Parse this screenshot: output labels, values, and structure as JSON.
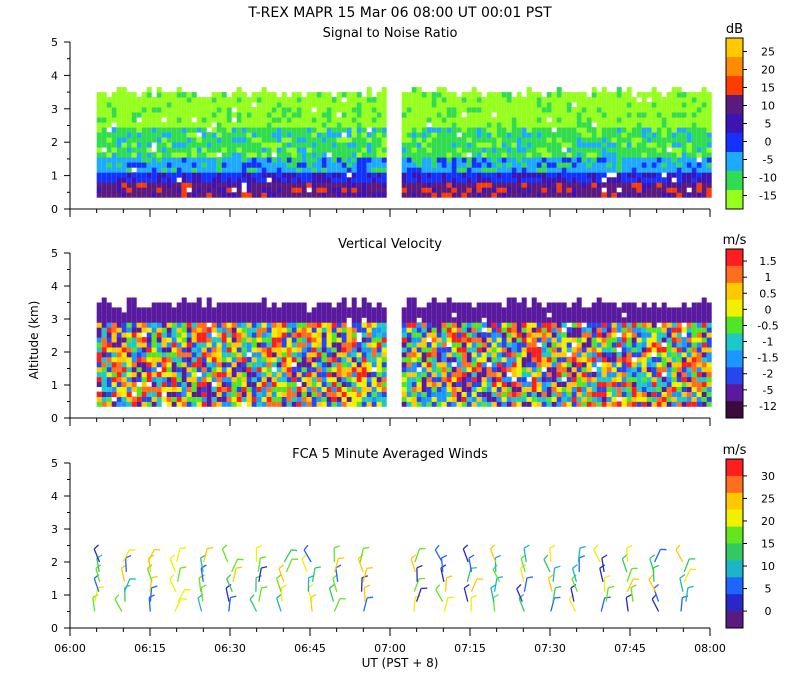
{
  "header": {
    "title": "T-REX   MAPR 15 Mar 06   08:00 UT   00:01   PST"
  },
  "x_axis": {
    "label": "UT  (PST + 8)",
    "ticks": [
      "06:00",
      "06:15",
      "06:30",
      "06:45",
      "07:00",
      "07:15",
      "07:30",
      "07:45",
      "08:00"
    ]
  },
  "y_axis": {
    "label": "Altitude (km)"
  },
  "chart_data": [
    {
      "type": "heatmap",
      "title": "Signal to Noise Ratio",
      "xlabel": "UT  (PST + 8)",
      "ylabel": "Altitude (km)",
      "xlim": [
        "06:00",
        "08:00"
      ],
      "ylim": [
        0,
        5
      ],
      "yticks": [
        "0",
        "1",
        "2",
        "3",
        "4",
        "5"
      ],
      "data_gap": [
        "06:59",
        "07:02"
      ],
      "colorbar": {
        "unit": "dB",
        "labels": [
          "25",
          "20",
          "15",
          "10",
          "5",
          "0",
          "-5",
          "-10",
          "-15"
        ],
        "colors": [
          "#ffc800",
          "#ff8c00",
          "#ff3c00",
          "#5a1a80",
          "#3c14b4",
          "#1432ff",
          "#1eaaff",
          "#32dc50",
          "#96ff1e"
        ]
      }
    },
    {
      "type": "heatmap",
      "title": "Vertical Velocity",
      "xlabel": "UT  (PST + 8)",
      "ylabel": "Altitude (km)",
      "xlim": [
        "06:00",
        "08:00"
      ],
      "ylim": [
        0,
        5
      ],
      "yticks": [
        "0",
        "1",
        "2",
        "3",
        "4",
        "5"
      ],
      "data_gap": [
        "06:59",
        "07:02"
      ],
      "colorbar": {
        "unit": "m/s",
        "labels": [
          "1.5",
          "1",
          "0.5",
          "0",
          "-0.5",
          "-1",
          "-1.5",
          "-2",
          "-5",
          "-12"
        ],
        "colors": [
          "#ff1e1e",
          "#ff6e1e",
          "#ffc800",
          "#f0f000",
          "#50e628",
          "#1ec8c8",
          "#1e96ff",
          "#2846f0",
          "#5a1aa0",
          "#3c0a3c"
        ]
      }
    },
    {
      "type": "wind-barbs",
      "title": "FCA 5 Minute Averaged Winds",
      "xlabel": "UT  (PST + 8)",
      "ylabel": "Altitude (km)",
      "xlim": [
        "06:00",
        "08:00"
      ],
      "ylim": [
        0,
        5
      ],
      "yticks": [
        "0",
        "1",
        "2",
        "3",
        "4",
        "5"
      ],
      "barb_altitude_range_km": [
        0.5,
        2.1
      ],
      "colorbar": {
        "unit": "m/s",
        "labels": [
          "30",
          "25",
          "20",
          "15",
          "10",
          "5",
          "0"
        ],
        "colors": [
          "#ff1e1e",
          "#ff6e1e",
          "#ffc800",
          "#f0f000",
          "#64e61e",
          "#32c864",
          "#1eb4c8",
          "#1e64ff",
          "#2828c8",
          "#5a1a80"
        ]
      }
    }
  ]
}
